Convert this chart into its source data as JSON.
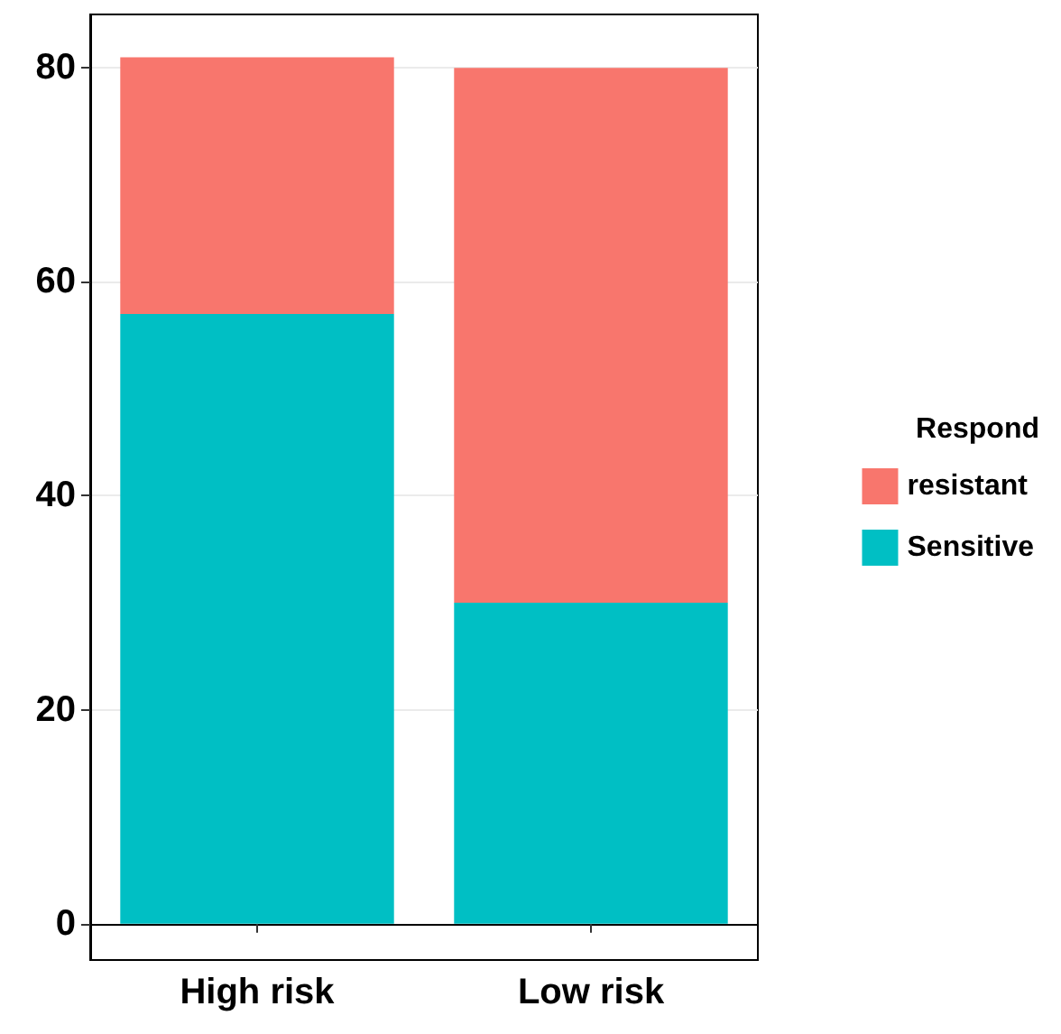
{
  "chart_data": {
    "type": "bar",
    "stacked": true,
    "categories": [
      "High risk",
      "Low risk"
    ],
    "legend_title": "Respond",
    "series": [
      {
        "name": "Sensitive",
        "color": "#00bfc4",
        "values": [
          57,
          30
        ]
      },
      {
        "name": "resistant",
        "color": "#f8766d",
        "values": [
          24,
          50
        ]
      }
    ],
    "ylim": [
      -3.4,
      85
    ],
    "yticks": [
      0,
      20,
      40,
      60,
      80
    ],
    "grid": "y",
    "legend": "right"
  }
}
